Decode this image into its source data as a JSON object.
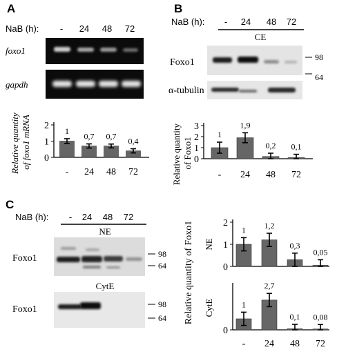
{
  "panels": {
    "A": {
      "letter": "A",
      "treatment_label": "NaB (h):",
      "lane_labels": [
        "-",
        "24",
        "48",
        "72"
      ],
      "gel_labels": [
        "foxo1",
        "gapdh"
      ],
      "ylabel": [
        "Relative quantity",
        "of foxo1 mRNA"
      ]
    },
    "B": {
      "letter": "B",
      "treatment_label": "NaB (h):",
      "lane_labels": [
        "-",
        "24",
        "48",
        "72"
      ],
      "fraction_label": "CE",
      "blot_labels": [
        "Foxo1",
        "α-tubulin"
      ],
      "markers": [
        "98",
        "64"
      ],
      "ylabel": [
        "Relative quantity",
        "of Foxo1"
      ]
    },
    "C": {
      "letter": "C",
      "treatment_label": "NaB (h):",
      "lane_labels": [
        "-",
        "24",
        "48",
        "72"
      ],
      "fraction_labels": [
        "NE",
        "CytE"
      ],
      "blot_label": "Foxo1",
      "markers": [
        "98",
        "64"
      ],
      "ylabel": "Relative quantity of Foxo1"
    }
  },
  "chart_data": [
    {
      "id": "A",
      "type": "bar",
      "categories": [
        "-",
        "24",
        "48",
        "72"
      ],
      "values": [
        1.0,
        0.7,
        0.7,
        0.4
      ],
      "errors": [
        0.15,
        0.13,
        0.12,
        0.13
      ],
      "value_labels": [
        "1",
        "0,7",
        "0,7",
        "0,4"
      ],
      "yticks": [
        "0",
        "1",
        "2"
      ],
      "ylim": [
        0,
        2
      ],
      "xlabel": "",
      "ylabel": "Relative quantity of foxo1 mRNA",
      "bar_color": "#666666"
    },
    {
      "id": "B",
      "type": "bar",
      "categories": [
        "-",
        "24",
        "48",
        "72"
      ],
      "values": [
        1.0,
        1.9,
        0.2,
        0.1
      ],
      "errors": [
        0.5,
        0.45,
        0.3,
        0.3
      ],
      "value_labels": [
        "1",
        "1,9",
        "0,2",
        "0,1"
      ],
      "yticks": [
        "0",
        "1",
        "2",
        "3"
      ],
      "ylim": [
        0,
        3
      ],
      "xlabel": "",
      "ylabel": "Relative quantity of Foxo1",
      "bar_color": "#666666"
    },
    {
      "id": "C-NE",
      "type": "bar",
      "categories": [
        "-",
        "24",
        "48",
        "72"
      ],
      "values": [
        1.0,
        1.2,
        0.3,
        0.05
      ],
      "errors": [
        0.3,
        0.3,
        0.3,
        0.25
      ],
      "value_labels": [
        "1",
        "1,2",
        "0,3",
        "0,05"
      ],
      "yticks": [
        "0",
        "1",
        "2"
      ],
      "ylim": [
        0,
        2
      ],
      "xlabel": "",
      "ylabel": "NE",
      "bar_color": "#666666"
    },
    {
      "id": "C-CytE",
      "type": "bar",
      "categories": [
        "-",
        "24",
        "48",
        "72"
      ],
      "values": [
        1.0,
        2.7,
        0.1,
        0.08
      ],
      "errors": [
        0.6,
        0.6,
        0.4,
        0.4
      ],
      "value_labels": [
        "1",
        "2,7",
        "0,1",
        "0,08"
      ],
      "yticks": [
        "0"
      ],
      "ylim": [
        0,
        4
      ],
      "xlabel": "",
      "ylabel": "CytE",
      "bar_color": "#666666"
    }
  ]
}
